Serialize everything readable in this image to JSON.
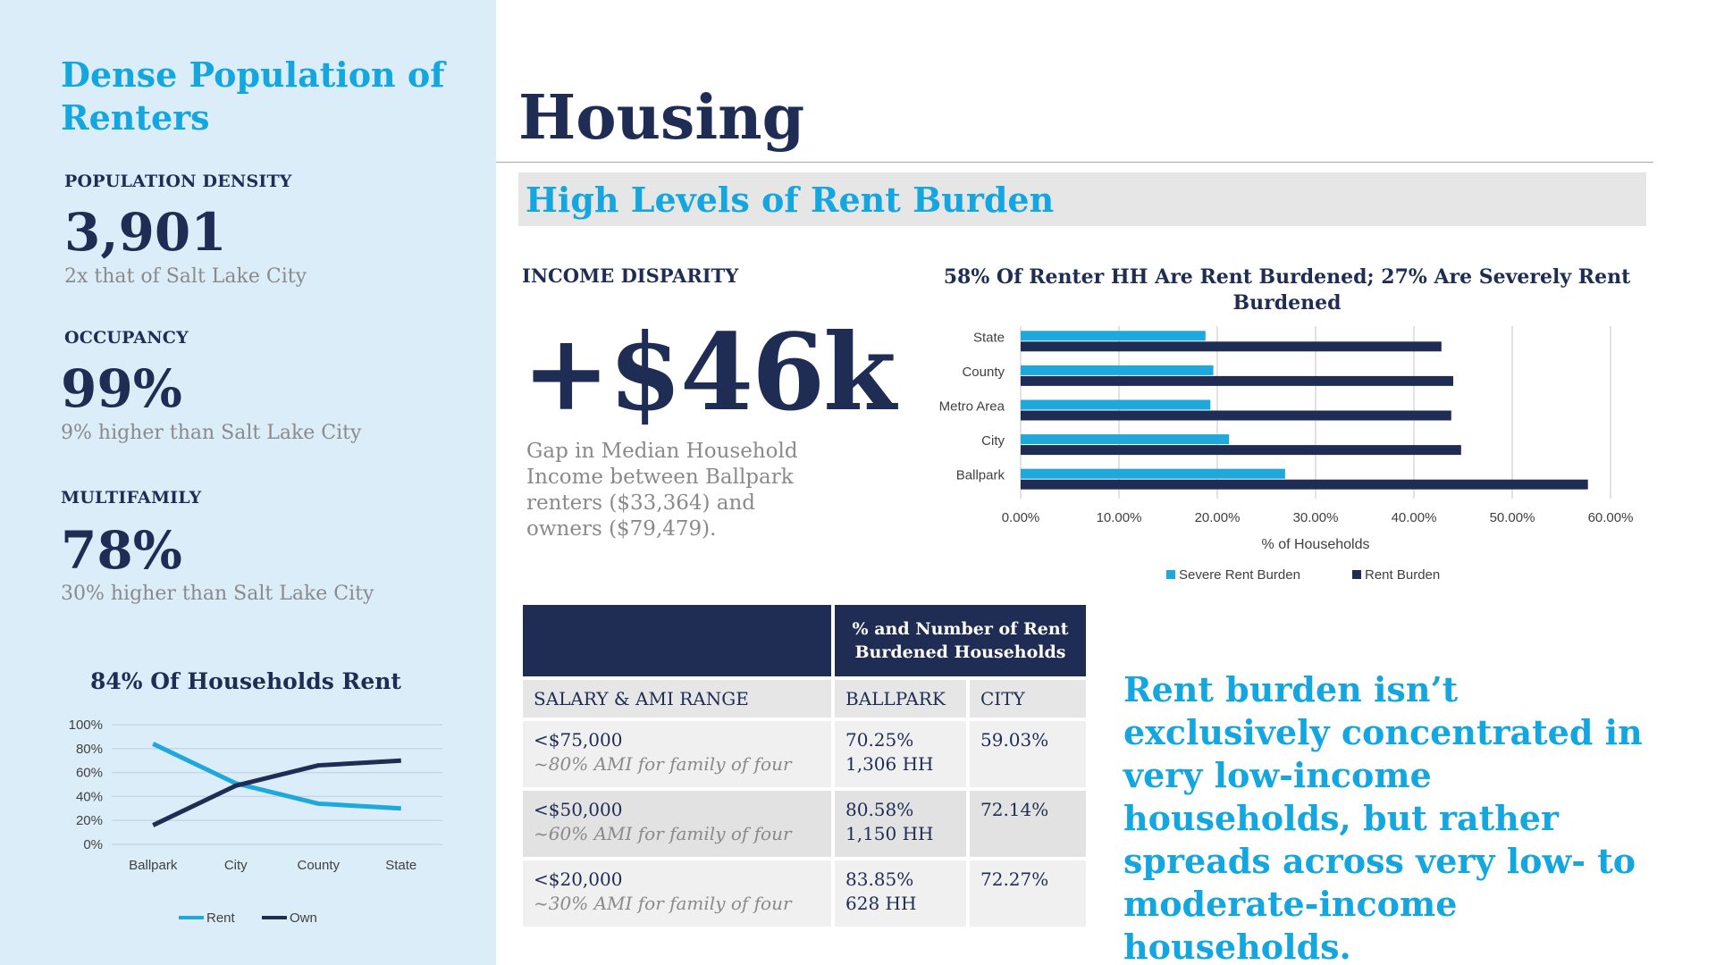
{
  "sidebar": {
    "title": "Dense Population of Renters",
    "metrics": [
      {
        "label": "POPULATION DENSITY",
        "value": "3,901",
        "sub": "2x that of Salt Lake City"
      },
      {
        "label": "OCCUPANCY",
        "value": "99%",
        "sub": "9% higher than Salt Lake City"
      },
      {
        "label": "MULTIFAMILY",
        "value": "78%",
        "sub": "30% higher than Salt Lake City"
      }
    ],
    "chart_title": "84% Of Households Rent"
  },
  "header": {
    "title": "Housing",
    "banner": "High Levels of Rent Burden"
  },
  "income": {
    "label": "INCOME DISPARITY",
    "value": "+$46k",
    "description": "Gap in Median Household Income between Ballpark renters ($33,364) and owners ($79,479)."
  },
  "bar_chart_title": "58% Of Renter HH Are Rent Burdened; 27% Are Severely Rent Burdened",
  "table": {
    "header": "% and Number of Rent Burdened Households",
    "col_labels": [
      "SALARY & AMI RANGE",
      "BALLPARK",
      "CITY"
    ],
    "rows": [
      {
        "range": "<$75,000",
        "ami": "~80% AMI for family of four",
        "ballpark_pct": "70.25%",
        "ballpark_hh": "1,306 HH",
        "city": "59.03%"
      },
      {
        "range": "<$50,000",
        "ami": "~60% AMI for family of four",
        "ballpark_pct": "80.58%",
        "ballpark_hh": "1,150 HH",
        "city": "72.14%"
      },
      {
        "range": "<$20,000",
        "ami": "~30% AMI for family of four",
        "ballpark_pct": "83.85%",
        "ballpark_hh": "628 HH",
        "city": "72.27%"
      }
    ]
  },
  "callout": "Rent burden isn’t exclusively concentrated in very low-income households, but rather spreads across very low- to moderate-income households.",
  "chart_data": [
    {
      "type": "line",
      "title": "84% Of Households Rent",
      "categories": [
        "Ballpark",
        "City",
        "County",
        "State"
      ],
      "series": [
        {
          "name": "Rent",
          "values": [
            84,
            51,
            34,
            30
          ],
          "color": "#1ea8db"
        },
        {
          "name": "Own",
          "values": [
            16,
            49,
            66,
            70
          ],
          "color": "#1f2d55"
        }
      ],
      "ylim": [
        0,
        100
      ],
      "yticks": [
        "100%",
        "80%",
        "60%",
        "40%",
        "20%",
        "0%"
      ],
      "legend": "bottom",
      "grid": true
    },
    {
      "type": "bar",
      "orientation": "horizontal",
      "title": "58% Of Renter HH Are Rent Burdened; 27% Are Severely Rent Burdened",
      "categories": [
        "State",
        "County",
        "Metro Area",
        "City",
        "Ballpark"
      ],
      "series": [
        {
          "name": "Severe Rent Burden",
          "values": [
            18.8,
            19.6,
            19.3,
            21.2,
            26.9
          ],
          "color": "#1ea8db"
        },
        {
          "name": "Rent Burden",
          "values": [
            42.8,
            44.0,
            43.8,
            44.8,
            57.7
          ],
          "color": "#1f2d55"
        }
      ],
      "xlabel": "% of Households",
      "xlim": [
        0,
        60
      ],
      "xticks": [
        "0.00%",
        "10.00%",
        "20.00%",
        "30.00%",
        "40.00%",
        "50.00%",
        "60.00%"
      ],
      "legend": "bottom",
      "grid": true
    }
  ]
}
